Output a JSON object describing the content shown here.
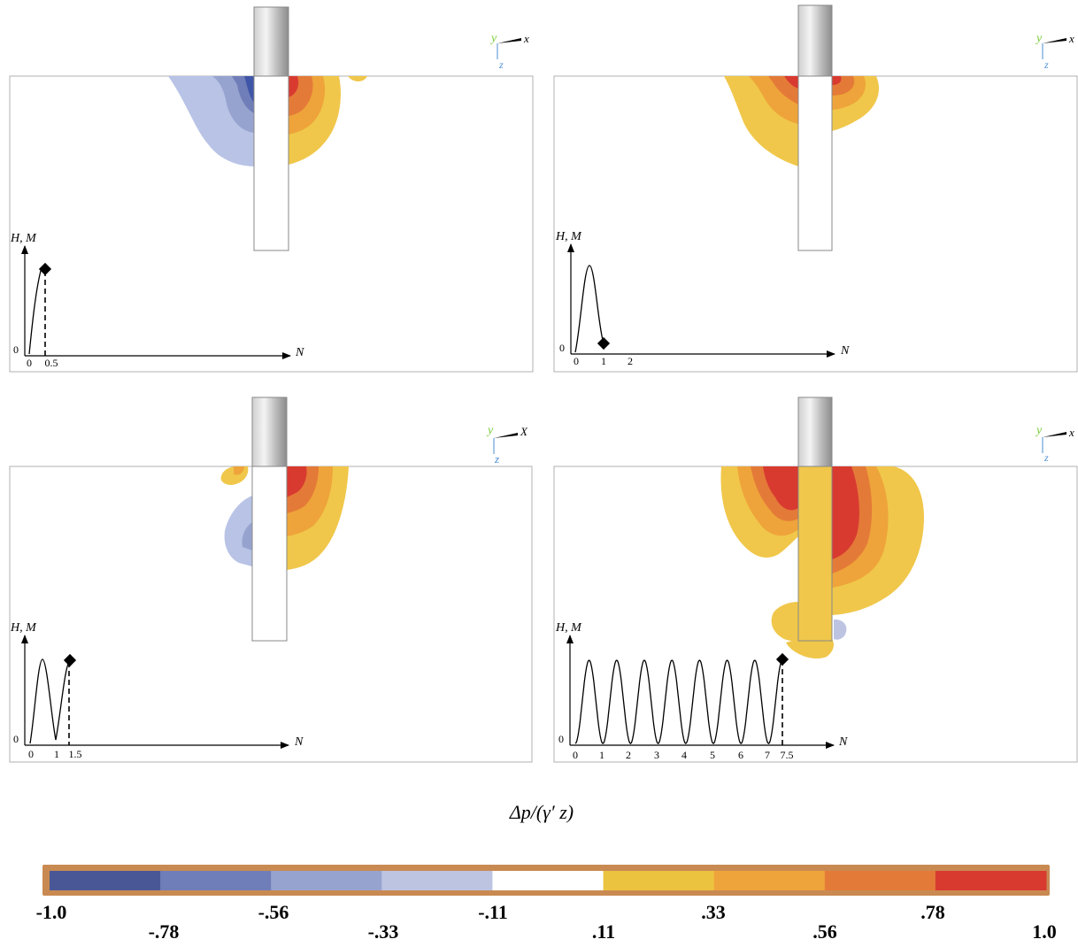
{
  "panels": [
    {
      "id": "p1",
      "axis_labels": {
        "y": "H, M",
        "x": "N",
        "origin": "0"
      },
      "ticks": [
        "0",
        "0.5"
      ],
      "cycles_completed": 0.5,
      "triad": {
        "y": "y",
        "x": "x",
        "z": "z"
      }
    },
    {
      "id": "p2",
      "axis_labels": {
        "y": "H, M",
        "x": "N",
        "origin": "0"
      },
      "ticks": [
        "0",
        "1",
        "2"
      ],
      "cycles_completed": 1,
      "triad": {
        "y": "y",
        "x": "x",
        "z": "z"
      }
    },
    {
      "id": "p3",
      "axis_labels": {
        "y": "H, M",
        "x": "N",
        "origin": "0"
      },
      "ticks": [
        "0",
        "1",
        "1.5"
      ],
      "cycles_completed": 1.5,
      "triad": {
        "y": "y",
        "x": "X",
        "z": "z"
      }
    },
    {
      "id": "p4",
      "axis_labels": {
        "y": "H, M",
        "x": "N",
        "origin": "0"
      },
      "ticks": [
        "0",
        "1",
        "2",
        "3",
        "4",
        "5",
        "6",
        "7",
        "7.5"
      ],
      "cycles_completed": 7.5,
      "triad": {
        "y": "y",
        "x": "x",
        "z": "z"
      }
    }
  ],
  "colorbar": {
    "title": "Δp/(γ′ z)",
    "colors": [
      "#4a5796",
      "#6f7eb8",
      "#97a3cf",
      "#bcc4e2",
      "#ffffff",
      "#ecc33f",
      "#eea43a",
      "#e47a38",
      "#d83a30"
    ],
    "labels_upper": [
      "-1.0",
      "-.56",
      "-.11",
      ".33",
      ".78"
    ],
    "labels_lower": [
      "-.78",
      "-.33",
      ".11",
      ".56",
      "1.0"
    ]
  },
  "colors": {
    "blue_dark": "#3f55a8",
    "blue_mid": "#7487c7",
    "blue_light": "#b8c3e6",
    "yellow": "#f0c74a",
    "orange_light": "#eea43a",
    "orange": "#e47a38",
    "red": "#d83a30"
  }
}
